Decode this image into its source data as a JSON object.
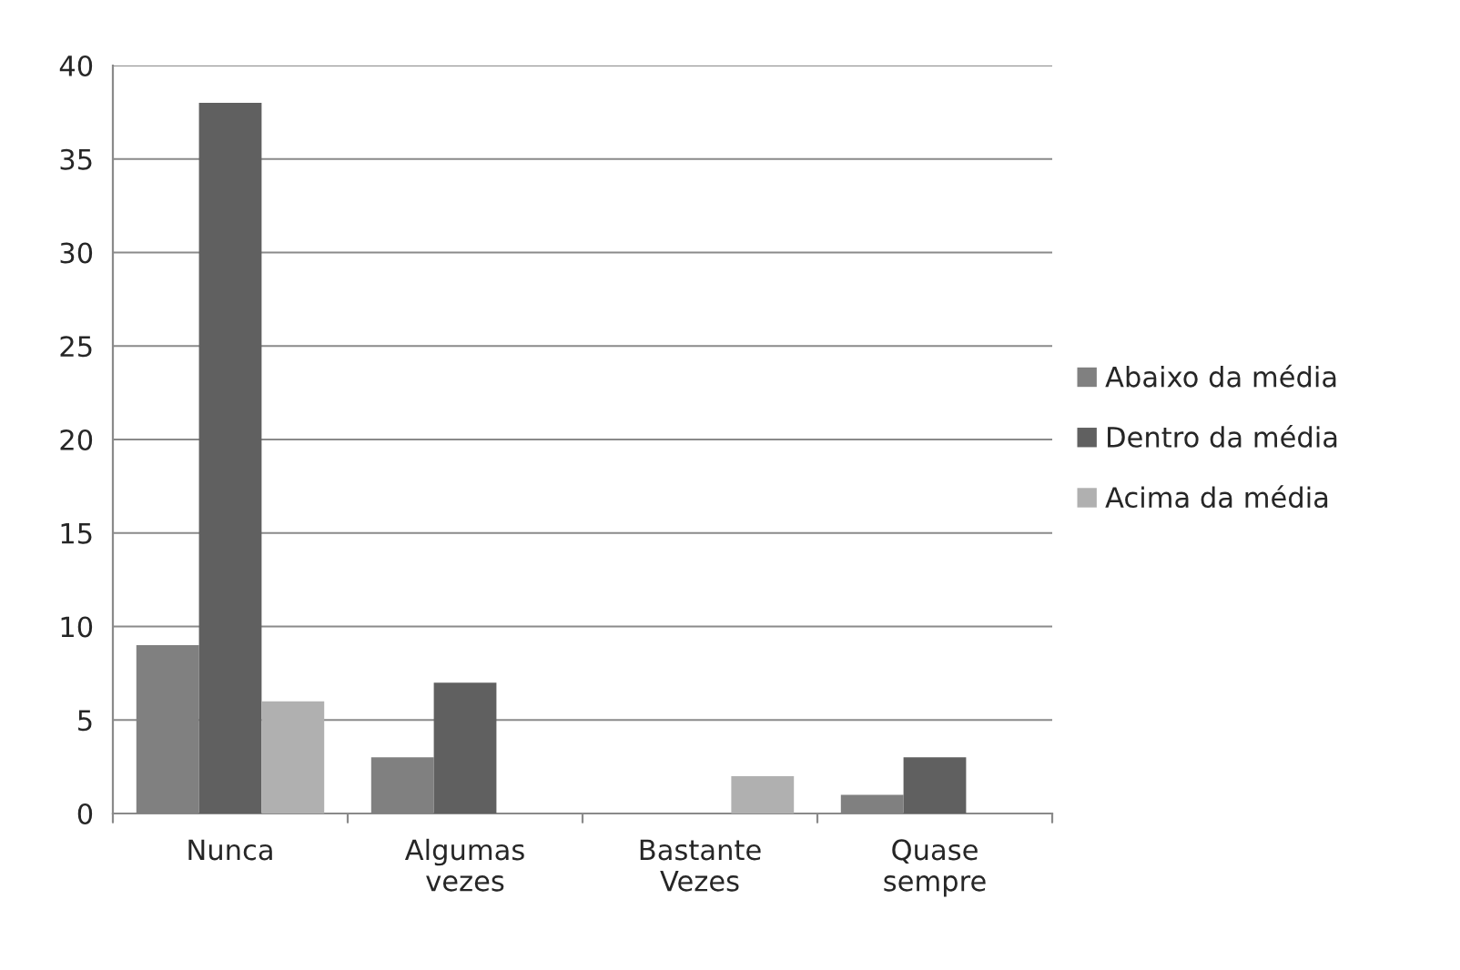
{
  "chart_data": {
    "type": "bar",
    "categories": [
      "Nunca",
      "Algumas\nvezes",
      "Bastante\nVezes",
      "Quase\nsempre"
    ],
    "series": [
      {
        "name": "Abaixo da média",
        "color": "#808080",
        "values": [
          9,
          3,
          0,
          1
        ]
      },
      {
        "name": "Dentro da média",
        "color": "#606060",
        "values": [
          38,
          7,
          0,
          3
        ]
      },
      {
        "name": "Acima da média",
        "color": "#b0b0b0",
        "values": [
          6,
          0,
          2,
          0
        ]
      }
    ],
    "ylim": [
      0,
      40
    ],
    "yticks": [
      0,
      5,
      10,
      15,
      20,
      25,
      30,
      35,
      40
    ],
    "grid": "y",
    "legend": "right"
  }
}
